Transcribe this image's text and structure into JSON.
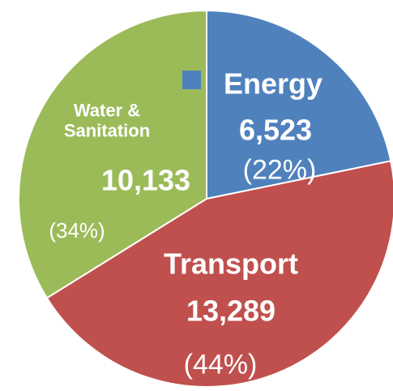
{
  "chart_data": {
    "type": "pie",
    "categories": [
      "Energy",
      "Transport",
      "Water & Sanitation"
    ],
    "values": [
      6523,
      13289,
      10133
    ],
    "value_labels": [
      "6,523",
      "13,289",
      "10,133"
    ],
    "percent_labels": [
      "(22%)",
      "(44%)",
      "(34%)"
    ],
    "colors": [
      "#4f81bd",
      "#c0504d",
      "#9bbb59"
    ]
  }
}
